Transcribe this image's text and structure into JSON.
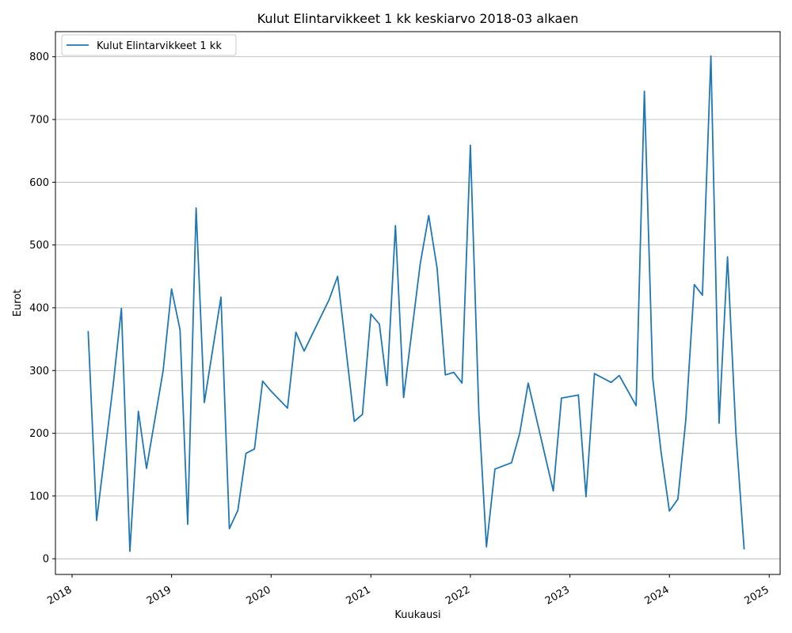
{
  "chart_data": {
    "type": "line",
    "title": "Kulut Elintarvikkeet 1 kk keskiarvo 2018-03 alkaen",
    "xlabel": "Kuukausi",
    "ylabel": "Eurot",
    "xlim": [
      "2017-11-01",
      "2025-02-10"
    ],
    "ylim": [
      -25,
      840
    ],
    "x_ticks": [
      "2018",
      "2019",
      "2020",
      "2021",
      "2022",
      "2023",
      "2024",
      "2025"
    ],
    "y_ticks": [
      0,
      100,
      200,
      300,
      400,
      500,
      600,
      700,
      800
    ],
    "grid": "horizontal",
    "legend": "top-left",
    "line_color": "#1f77b4",
    "series": [
      {
        "name": "Kulut Elintarvikkeet 1 kk",
        "x": [
          "2018-03",
          "2018-04",
          "2018-06",
          "2018-07",
          "2018-08",
          "2018-09",
          "2018-10",
          "2018-12",
          "2019-01",
          "2019-02",
          "2019-03",
          "2019-04",
          "2019-05",
          "2019-07",
          "2019-08",
          "2019-09",
          "2019-10",
          "2019-11",
          "2019-12",
          "2020-01",
          "2020-03",
          "2020-04",
          "2020-05",
          "2020-08",
          "2020-09",
          "2020-11",
          "2020-12",
          "2021-01",
          "2021-02",
          "2021-03",
          "2021-04",
          "2021-05",
          "2021-07",
          "2021-08",
          "2021-09",
          "2021-10",
          "2021-11",
          "2021-12",
          "2022-01",
          "2022-02",
          "2022-03",
          "2022-04",
          "2022-06",
          "2022-07",
          "2022-08",
          "2022-11",
          "2022-12",
          "2023-02",
          "2023-03",
          "2023-04",
          "2023-06",
          "2023-07",
          "2023-09",
          "2023-10",
          "2023-11",
          "2023-12",
          "2024-01",
          "2024-02",
          "2024-03",
          "2024-04",
          "2024-05",
          "2024-06",
          "2024-07",
          "2024-08",
          "2024-09",
          "2024-10"
        ],
        "values": [
          363,
          61,
          278,
          399,
          12,
          235,
          144,
          300,
          430,
          365,
          55,
          559,
          249,
          417,
          48,
          77,
          168,
          175,
          283,
          267,
          240,
          361,
          331,
          413,
          450,
          219,
          230,
          390,
          374,
          276,
          531,
          257,
          470,
          547,
          463,
          293,
          297,
          280,
          659,
          233,
          19,
          143,
          153,
          200,
          280,
          108,
          256,
          261,
          99,
          295,
          281,
          292,
          244,
          745,
          287,
          171,
          76,
          95,
          221,
          437,
          420,
          801,
          216,
          481,
          200,
          15
        ]
      }
    ]
  }
}
